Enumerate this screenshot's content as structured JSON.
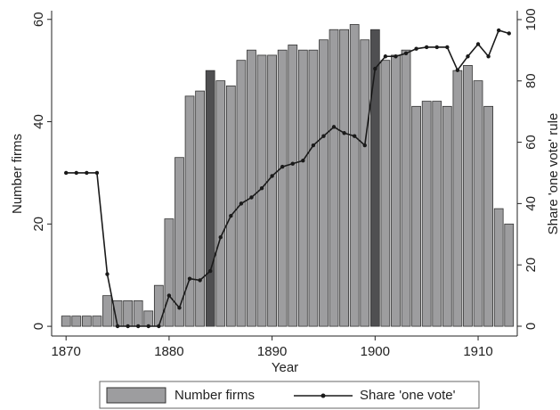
{
  "chart_data": {
    "type": "bar-line",
    "x_label": "Year",
    "y_label": "Number firms",
    "y2_label": "Share 'one vote' rule",
    "x": [
      1870,
      1871,
      1872,
      1873,
      1874,
      1875,
      1876,
      1877,
      1878,
      1879,
      1880,
      1881,
      1882,
      1883,
      1884,
      1885,
      1886,
      1887,
      1888,
      1889,
      1890,
      1891,
      1892,
      1893,
      1894,
      1895,
      1896,
      1897,
      1898,
      1899,
      1900,
      1901,
      1902,
      1903,
      1904,
      1905,
      1906,
      1907,
      1908,
      1909,
      1910,
      1911,
      1912,
      1913
    ],
    "series": [
      {
        "name": "Number firms",
        "type": "bar",
        "color": "#9d9d9f",
        "highlight_color": "#4f4f51",
        "highlight": [
          1884,
          1900
        ],
        "values": [
          2,
          2,
          2,
          2,
          6,
          5,
          5,
          5,
          3,
          8,
          21,
          33,
          45,
          46,
          50,
          48,
          47,
          52,
          54,
          53,
          53,
          54,
          55,
          54,
          54,
          56,
          58,
          58,
          59,
          56,
          58,
          52,
          53,
          54,
          43,
          44,
          44,
          43,
          50,
          51,
          48,
          43,
          23,
          20
        ]
      },
      {
        "name": "Share 'one vote'",
        "type": "line",
        "axis": "y2",
        "color": "#1a1a1a",
        "values": [
          50,
          50,
          50,
          50,
          17,
          0,
          0,
          0,
          0,
          0,
          10,
          6,
          15.5,
          15,
          18,
          29,
          36,
          40,
          42,
          45,
          49,
          52,
          53,
          54,
          59,
          62,
          65,
          63,
          62,
          59,
          84,
          88,
          88,
          89,
          90.5,
          91,
          91,
          91,
          83.5,
          88,
          92,
          88,
          96.5,
          95.5
        ]
      }
    ],
    "xlim": [
      1868.6,
      1913.8
    ],
    "xticks": [
      1870,
      1880,
      1890,
      1900,
      1910
    ],
    "ylim": [
      -1.9,
      61.7
    ],
    "yticks": [
      0,
      20,
      40,
      60
    ],
    "y2lim": [
      -3.2,
      102.9
    ],
    "y2ticks": [
      0,
      20,
      40,
      60,
      80,
      100
    ],
    "legend": "bottom"
  }
}
